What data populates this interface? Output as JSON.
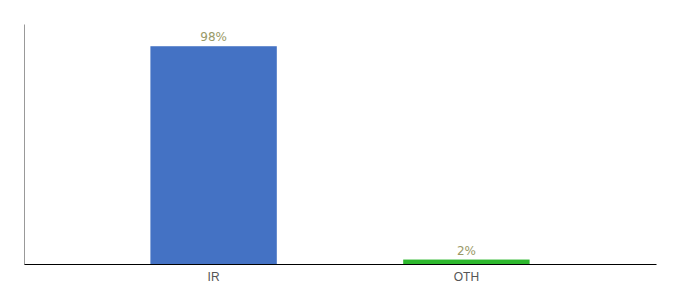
{
  "chart_data": {
    "type": "bar",
    "categories": [
      "IR",
      "OTH"
    ],
    "values": [
      98,
      2
    ],
    "value_labels": [
      "98%",
      "2%"
    ],
    "colors": [
      "#4472c4",
      "#2db82d"
    ],
    "ylim": [
      0,
      108
    ],
    "data_labels": true,
    "tick_labels": "x"
  }
}
